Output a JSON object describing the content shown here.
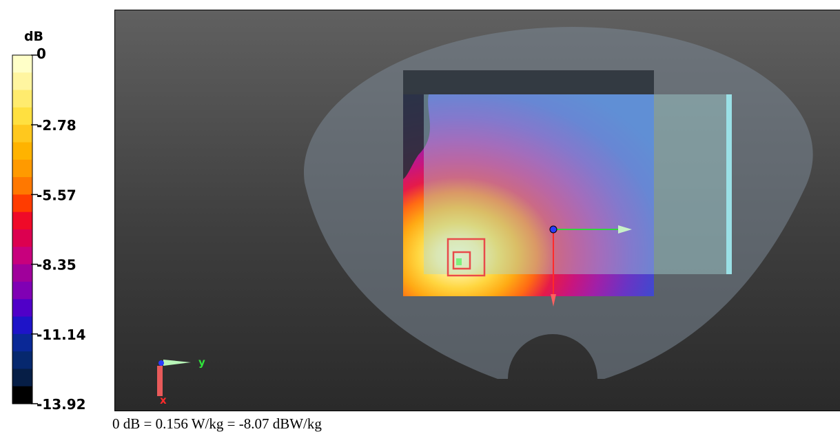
{
  "colorbar": {
    "unit": "dB",
    "tick_labels": [
      "0",
      "-2.78",
      "-5.57",
      "-8.35",
      "-11.14",
      "-13.92"
    ],
    "colors": [
      "#ffffc8",
      "#fff5a0",
      "#ffeb6e",
      "#ffe040",
      "#ffc81e",
      "#ffb300",
      "#ff9a00",
      "#ff7800",
      "#ff3c00",
      "#ef0a28",
      "#dc0050",
      "#c8007d",
      "#a0009b",
      "#8000b4",
      "#5000c8",
      "#1e14c8",
      "#0a2896",
      "#06286e",
      "#061e46",
      "#000000"
    ]
  },
  "axes_triad": {
    "y_label": "y",
    "x_label": "x"
  },
  "caption": "0 dB = 0.156 W/kg = -8.07 dBW/kg",
  "chart_data": {
    "type": "heatmap",
    "title": "",
    "colorbar_unit": "dB",
    "colorbar_range": [
      -13.92,
      0
    ],
    "colorbar_ticks": [
      0,
      -2.78,
      -5.57,
      -8.35,
      -11.14,
      -13.92
    ],
    "reference": "0 dB = 0.156 W/kg = -8.07 dBW/kg"
  }
}
